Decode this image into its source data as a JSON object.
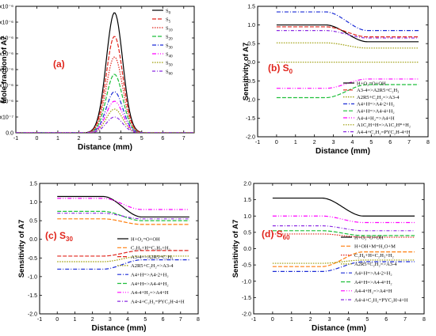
{
  "colors": {
    "black": "#000000",
    "red": "#e0251c",
    "orange": "#ff7f0e",
    "green": "#1fbf3a",
    "blue": "#1a2bd6",
    "magenta": "#ff00ff",
    "olive": "#9a9a00",
    "purple": "#8b2be2",
    "label_red": "#e0251c"
  },
  "chart_data": [
    {
      "id": "a",
      "type": "line",
      "panel_label": "(a)",
      "xlabel": "Distance (mm)",
      "ylabel": "Mole fraction of A7",
      "xlim": [
        -1,
        7.5
      ],
      "ylim": [
        0,
        4e-06
      ],
      "xticks": [
        "-1",
        "0",
        "1",
        "2",
        "3",
        "4",
        "5",
        "6",
        "7"
      ],
      "xtick_values": [
        -1,
        0,
        1,
        2,
        3,
        4,
        5,
        6,
        7
      ],
      "yticks": [
        "0.0",
        "5.0x10⁻⁷",
        "1.0x10⁻⁶",
        "1.5x10⁻⁶",
        "2.0x10⁻⁶",
        "2.5x10⁻⁶",
        "3.0x10⁻⁶",
        "3.5x10⁻⁶",
        "4.0x10⁻⁶"
      ],
      "ytick_values": [
        0,
        5e-07,
        1e-06,
        1.5e-06,
        2e-06,
        2.5e-06,
        3e-06,
        3.5e-06,
        4e-06
      ],
      "legend_position": "top-right",
      "series": [
        {
          "name": "S0",
          "name_text": "S",
          "name_sub": "0",
          "peak": 3.8e-06,
          "center": 3.7,
          "width": 0.55,
          "color_key": "black",
          "dash": ""
        },
        {
          "name": "S5",
          "name_text": "S",
          "name_sub": "5",
          "peak": 3.05e-06,
          "center": 3.7,
          "width": 0.55,
          "color_key": "red",
          "dash": "5,2"
        },
        {
          "name": "S10",
          "name_text": "S",
          "name_sub": "10",
          "peak": 2.4e-06,
          "center": 3.7,
          "width": 0.55,
          "color_key": "red",
          "dash": "1.5,1.5"
        },
        {
          "name": "S20",
          "name_text": "S",
          "name_sub": "20",
          "peak": 1.85e-06,
          "center": 3.7,
          "width": 0.55,
          "color_key": "green",
          "dash": "5,2"
        },
        {
          "name": "S30",
          "name_text": "S",
          "name_sub": "30",
          "peak": 1.3e-06,
          "center": 3.7,
          "width": 0.55,
          "color_key": "blue",
          "dash": "5,2,1,2"
        },
        {
          "name": "S40",
          "name_text": "S",
          "name_sub": "40",
          "peak": 1e-06,
          "center": 3.7,
          "width": 0.55,
          "color_key": "magenta",
          "dash": "5,2,1,2,1,2"
        },
        {
          "name": "S50",
          "name_text": "S",
          "name_sub": "50",
          "peak": 7.5e-07,
          "center": 3.7,
          "width": 0.55,
          "color_key": "olive",
          "dash": "1.5,1.5"
        },
        {
          "name": "S60",
          "name_text": "S",
          "name_sub": "60",
          "peak": 5e-07,
          "center": 3.7,
          "width": 0.55,
          "color_key": "purple",
          "dash": "4,2,1,2"
        }
      ]
    },
    {
      "id": "b",
      "type": "line",
      "panel_label_text": "(b) S",
      "panel_label_sub": "0",
      "xlabel": "Distance (mm)",
      "ylabel": "Sensitivity of A7",
      "xlim": [
        -1,
        8
      ],
      "ylim": [
        -2.0,
        1.5
      ],
      "xticks": [
        "-1",
        "0",
        "1",
        "2",
        "3",
        "4",
        "5",
        "6",
        "7",
        "8"
      ],
      "xtick_values": [
        -1,
        0,
        1,
        2,
        3,
        4,
        5,
        6,
        7,
        8
      ],
      "yticks": [
        "-2.0",
        "-1.5",
        "-1.0",
        "-0.5",
        "0.0",
        "0.5",
        "1.0",
        "1.5"
      ],
      "ytick_values": [
        -2,
        -1.5,
        -1,
        -0.5,
        0,
        0.5,
        1,
        1.5
      ],
      "legend_position": "lower-right",
      "series": [
        {
          "name": "H+O₂=O+OH",
          "start": 1.0,
          "end": 0.55,
          "color_key": "black",
          "dash": ""
        },
        {
          "name": "A3-4=>A2R5+C₂H₃",
          "start": 0.95,
          "end": 0.68,
          "color_key": "red",
          "dash": "5,2"
        },
        {
          "name": "A2R5+C₂H₂=>A3-4",
          "start": 0.52,
          "end": 0.38,
          "color_key": "olive",
          "dash": "1.5,1.5"
        },
        {
          "name": "A4+H=>A4-2+H₂",
          "start": 1.35,
          "end": 0.85,
          "color_key": "blue",
          "dash": "5,2,1,2"
        },
        {
          "name": "A4+H=>A4-4+H₂",
          "start": -0.95,
          "end": -0.6,
          "color_key": "green",
          "dash": "5,2"
        },
        {
          "name": "A4-4+H₂=>A4+H",
          "start": -0.7,
          "end": -0.45,
          "color_key": "magenta",
          "dash": "5,2,1,2,1,2"
        },
        {
          "name": "A1C₂H+H=>A1C₂H*+H₂",
          "start": 0.0,
          "end": 0.0,
          "color_key": "olive",
          "dash": "1.5,1.5"
        },
        {
          "name": "A4-4+C₂H₂=PYC₂H-4+H",
          "start": 0.85,
          "end": 0.65,
          "color_key": "purple",
          "dash": "4,2,1,2"
        }
      ]
    },
    {
      "id": "c",
      "type": "line",
      "panel_label_text": "(c) S",
      "panel_label_sub": "30",
      "xlabel": "Distance (mm)",
      "ylabel": "Sensitivity of A7",
      "xlim": [
        -1,
        8
      ],
      "ylim": [
        -2.0,
        1.5
      ],
      "xticks": [
        "-1",
        "0",
        "1",
        "2",
        "3",
        "4",
        "5",
        "6",
        "7",
        "8"
      ],
      "xtick_values": [
        -1,
        0,
        1,
        2,
        3,
        4,
        5,
        6,
        7,
        8
      ],
      "yticks": [
        "-2.0",
        "-1.5",
        "-1.0",
        "-0.5",
        "0.0",
        "0.5",
        "1.0",
        "1.5"
      ],
      "ytick_values": [
        -2,
        -1.5,
        -1,
        -0.5,
        0,
        0.5,
        1,
        1.5
      ],
      "legend_position": "lower-right",
      "series": [
        {
          "name": "H+O₂=O+OH",
          "start": 1.15,
          "end": 0.6,
          "color_key": "black",
          "dash": ""
        },
        {
          "name": "C₂H₄+H=C₂H₃+H₂",
          "start": 0.55,
          "end": 0.4,
          "color_key": "orange",
          "dash": "5,2"
        },
        {
          "name": "A3-4=>A2R5+C₂H₃",
          "start": -0.45,
          "end": -0.3,
          "color_key": "red",
          "dash": "5,2"
        },
        {
          "name": "A2R5+C₂H₂=>A3-4",
          "start": -0.6,
          "end": -0.45,
          "color_key": "olive",
          "dash": "1.5,1.5"
        },
        {
          "name": "A4+H=>A4-2+H₂",
          "start": -0.8,
          "end": -0.55,
          "color_key": "blue",
          "dash": "5,2,1,2"
        },
        {
          "name": "A4+H=>A4-4+H₂",
          "start": 0.75,
          "end": 0.5,
          "color_key": "green",
          "dash": "5,2"
        },
        {
          "name": "A4-4+H₂=>A4+H",
          "start": 1.1,
          "end": 0.8,
          "color_key": "magenta",
          "dash": "5,2,1,2,1,2"
        },
        {
          "name": "A4-4+C₂H₂=PYC₂H-4+H",
          "start": 0.7,
          "end": 0.55,
          "color_key": "purple",
          "dash": "4,2,1,2"
        }
      ]
    },
    {
      "id": "d",
      "type": "line",
      "panel_label_text": "(d) S",
      "panel_label_sub": "60",
      "xlabel": "Distance (mm)",
      "ylabel": "Sensitivity of A7",
      "xlim": [
        -1,
        8
      ],
      "ylim": [
        -2.0,
        2.0
      ],
      "xticks": [
        "-1",
        "0",
        "1",
        "2",
        "3",
        "4",
        "5",
        "6",
        "7",
        "8"
      ],
      "xtick_values": [
        -1,
        0,
        1,
        2,
        3,
        4,
        5,
        6,
        7,
        8
      ],
      "yticks": [
        "-2.0",
        "-1.5",
        "-1.0",
        "-0.5",
        "0.0",
        "0.5",
        "1.0",
        "1.5",
        "2.0"
      ],
      "ytick_values": [
        -2,
        -1.5,
        -1,
        -0.5,
        0,
        0.5,
        1,
        1.5,
        2
      ],
      "legend_position": "lower-right",
      "series": [
        {
          "name": "H+O₂=O+OH",
          "start": 1.55,
          "end": 1.0,
          "color_key": "black",
          "dash": ""
        },
        {
          "name": "H+OH+M=H₂O+M",
          "start": -0.55,
          "end": -0.1,
          "color_key": "orange",
          "dash": "5,2"
        },
        {
          "name": "C₂H₄+H=C₂H₃+H₂",
          "start": 0.45,
          "end": 0.35,
          "color_key": "red",
          "dash": "1.5,1.5"
        },
        {
          "name": "A2R5+C₂H₂=>A3-4",
          "start": -0.45,
          "end": -0.35,
          "color_key": "olive",
          "dash": "1.5,1.5"
        },
        {
          "name": "A4+H=>A4-2+H₂",
          "start": -0.7,
          "end": -0.4,
          "color_key": "blue",
          "dash": "5,2,1,2"
        },
        {
          "name": "A4+H=>A4-4+H₂",
          "start": 0.55,
          "end": 0.4,
          "color_key": "green",
          "dash": "5,2"
        },
        {
          "name": "A4-4+H₂=>A4+H",
          "start": 1.0,
          "end": 0.8,
          "color_key": "magenta",
          "dash": "5,2,1,2,1,2"
        },
        {
          "name": "A4-4+C₂H₂=PYC₂H-4+H",
          "start": 0.7,
          "end": 0.55,
          "color_key": "purple",
          "dash": "4,2,1,2"
        }
      ]
    }
  ]
}
